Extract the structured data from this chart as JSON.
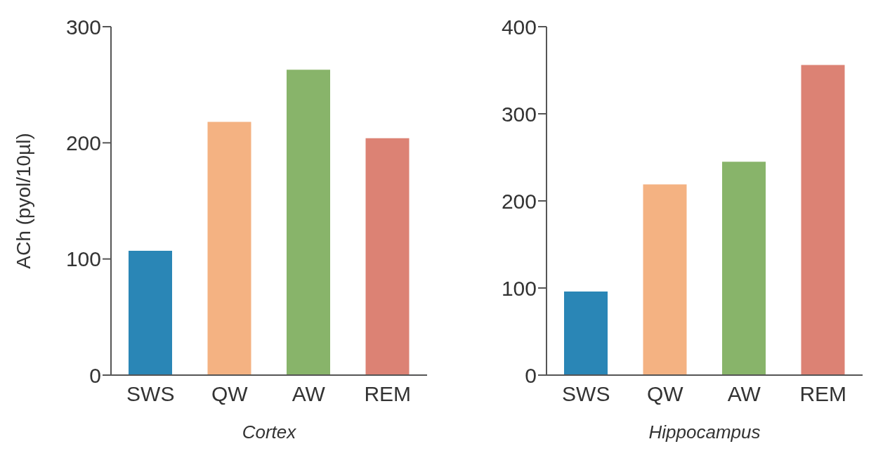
{
  "chart_data": [
    {
      "type": "bar",
      "categories": [
        "SWS",
        "QW",
        "AW",
        "REM"
      ],
      "values": [
        107,
        218,
        263,
        204
      ],
      "colors": [
        "#2a86b6",
        "#f4b282",
        "#88b46a",
        "#dc8274"
      ],
      "ylim": [
        0,
        300
      ],
      "yticks": [
        0,
        100,
        200,
        300
      ],
      "ylabel": "ACh (pyol/10µl)",
      "xlabel": "Cortex",
      "grid": false,
      "legend": false
    },
    {
      "type": "bar",
      "categories": [
        "SWS",
        "QW",
        "AW",
        "REM"
      ],
      "values": [
        96,
        219,
        245,
        356
      ],
      "colors": [
        "#2a86b6",
        "#f4b282",
        "#88b46a",
        "#dc8274"
      ],
      "ylim": [
        0,
        400
      ],
      "yticks": [
        0,
        100,
        200,
        300,
        400
      ],
      "xlabel": "Hippocampus",
      "grid": false,
      "legend": false
    }
  ]
}
